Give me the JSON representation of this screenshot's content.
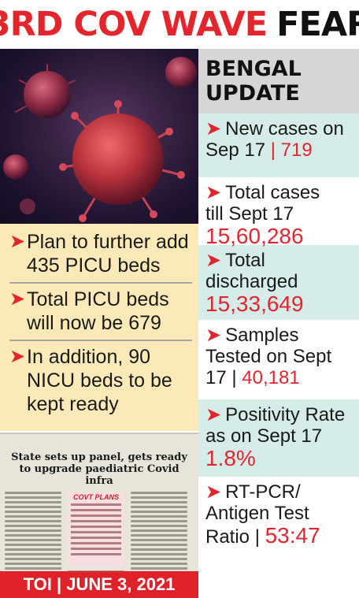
{
  "headline": {
    "part1": "3RD COV WAVE",
    "part2": "FEAR"
  },
  "left_bullets": [
    "Plan to further add 435 PICU beds",
    "Total PICU beds will now be 679",
    "In addition, 90 NICU beds to be kept ready"
  ],
  "clipping": {
    "headline": "State sets up panel, gets ready to upgrade paediatric Covid infra",
    "box_title": "COVT PLANS"
  },
  "footer": "TOI | JUNE 3, 2021",
  "bengal": {
    "title_line1": "BENGAL",
    "title_line2": "UPDATE",
    "stats": [
      {
        "label1": "New cases on",
        "label2": "Sep 17",
        "value": "719"
      },
      {
        "label1": "Total cases",
        "label2": "till Sept 17",
        "value": "15,60,286"
      },
      {
        "label1": "Total",
        "label2": "discharged",
        "value": "15,33,649"
      },
      {
        "label1": "Samples",
        "label2": "Tested on Sept",
        "label3": "17",
        "value": "40,181"
      },
      {
        "label1": "Positivity Rate",
        "label2": "as on Sept 17",
        "value": "1.8%"
      },
      {
        "label1": "RT-PCR/",
        "label2": "Antigen Test",
        "label3": "Ratio",
        "value": "53:47"
      }
    ]
  },
  "colors": {
    "accent": "#e3262d",
    "teal_band": "#d5ece9",
    "yellow_panel": "#fbeab8",
    "gray_title": "#d6d6d6"
  },
  "icons": {
    "bullet": "chevron-right-icon",
    "image": "coronavirus-illustration"
  }
}
